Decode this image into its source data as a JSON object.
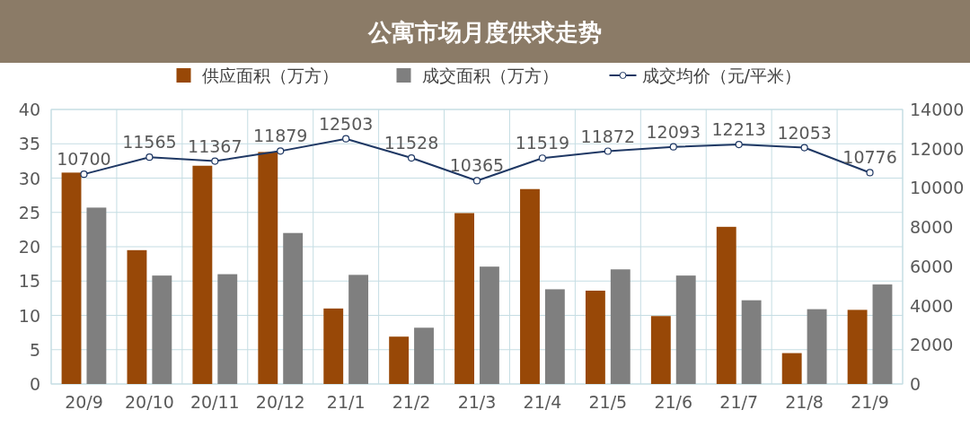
{
  "chart_data": {
    "type": "bar",
    "title": "公寓市场月度供求走势",
    "categories": [
      "20/9",
      "20/10",
      "20/11",
      "20/12",
      "21/1",
      "21/2",
      "21/3",
      "21/4",
      "21/5",
      "21/6",
      "21/7",
      "21/8",
      "21/9"
    ],
    "series": [
      {
        "name": "供应面积（万方）",
        "color": "#984807",
        "values": [
          30.8,
          19.5,
          31.8,
          33.8,
          11,
          6.9,
          24.9,
          28.4,
          13.6,
          9.9,
          22.9,
          4.5,
          10.8
        ]
      },
      {
        "name": "成交面积（万方）",
        "color": "#7f7f7f",
        "values": [
          25.7,
          15.8,
          16,
          22,
          15.9,
          8.2,
          17.1,
          13.8,
          16.7,
          15.8,
          12.2,
          10.9,
          14.5
        ]
      },
      {
        "name": "成交均价（元/平米）",
        "color": "#1f3864",
        "type": "line",
        "axis": "y2",
        "marker": "circle",
        "data_labels": true,
        "values": [
          10700,
          11565,
          11367,
          11879,
          12503,
          11528,
          10365,
          11519,
          11872,
          12093,
          12213,
          12053,
          10776
        ]
      }
    ],
    "ylim": [
      0,
      40
    ],
    "yticks": [
      0,
      5,
      10,
      15,
      20,
      25,
      30,
      35,
      40
    ],
    "y2lim": [
      0,
      14000
    ],
    "y2ticks": [
      0,
      2000,
      4000,
      6000,
      8000,
      10000,
      12000,
      14000
    ],
    "grid": true,
    "legend": "top"
  }
}
